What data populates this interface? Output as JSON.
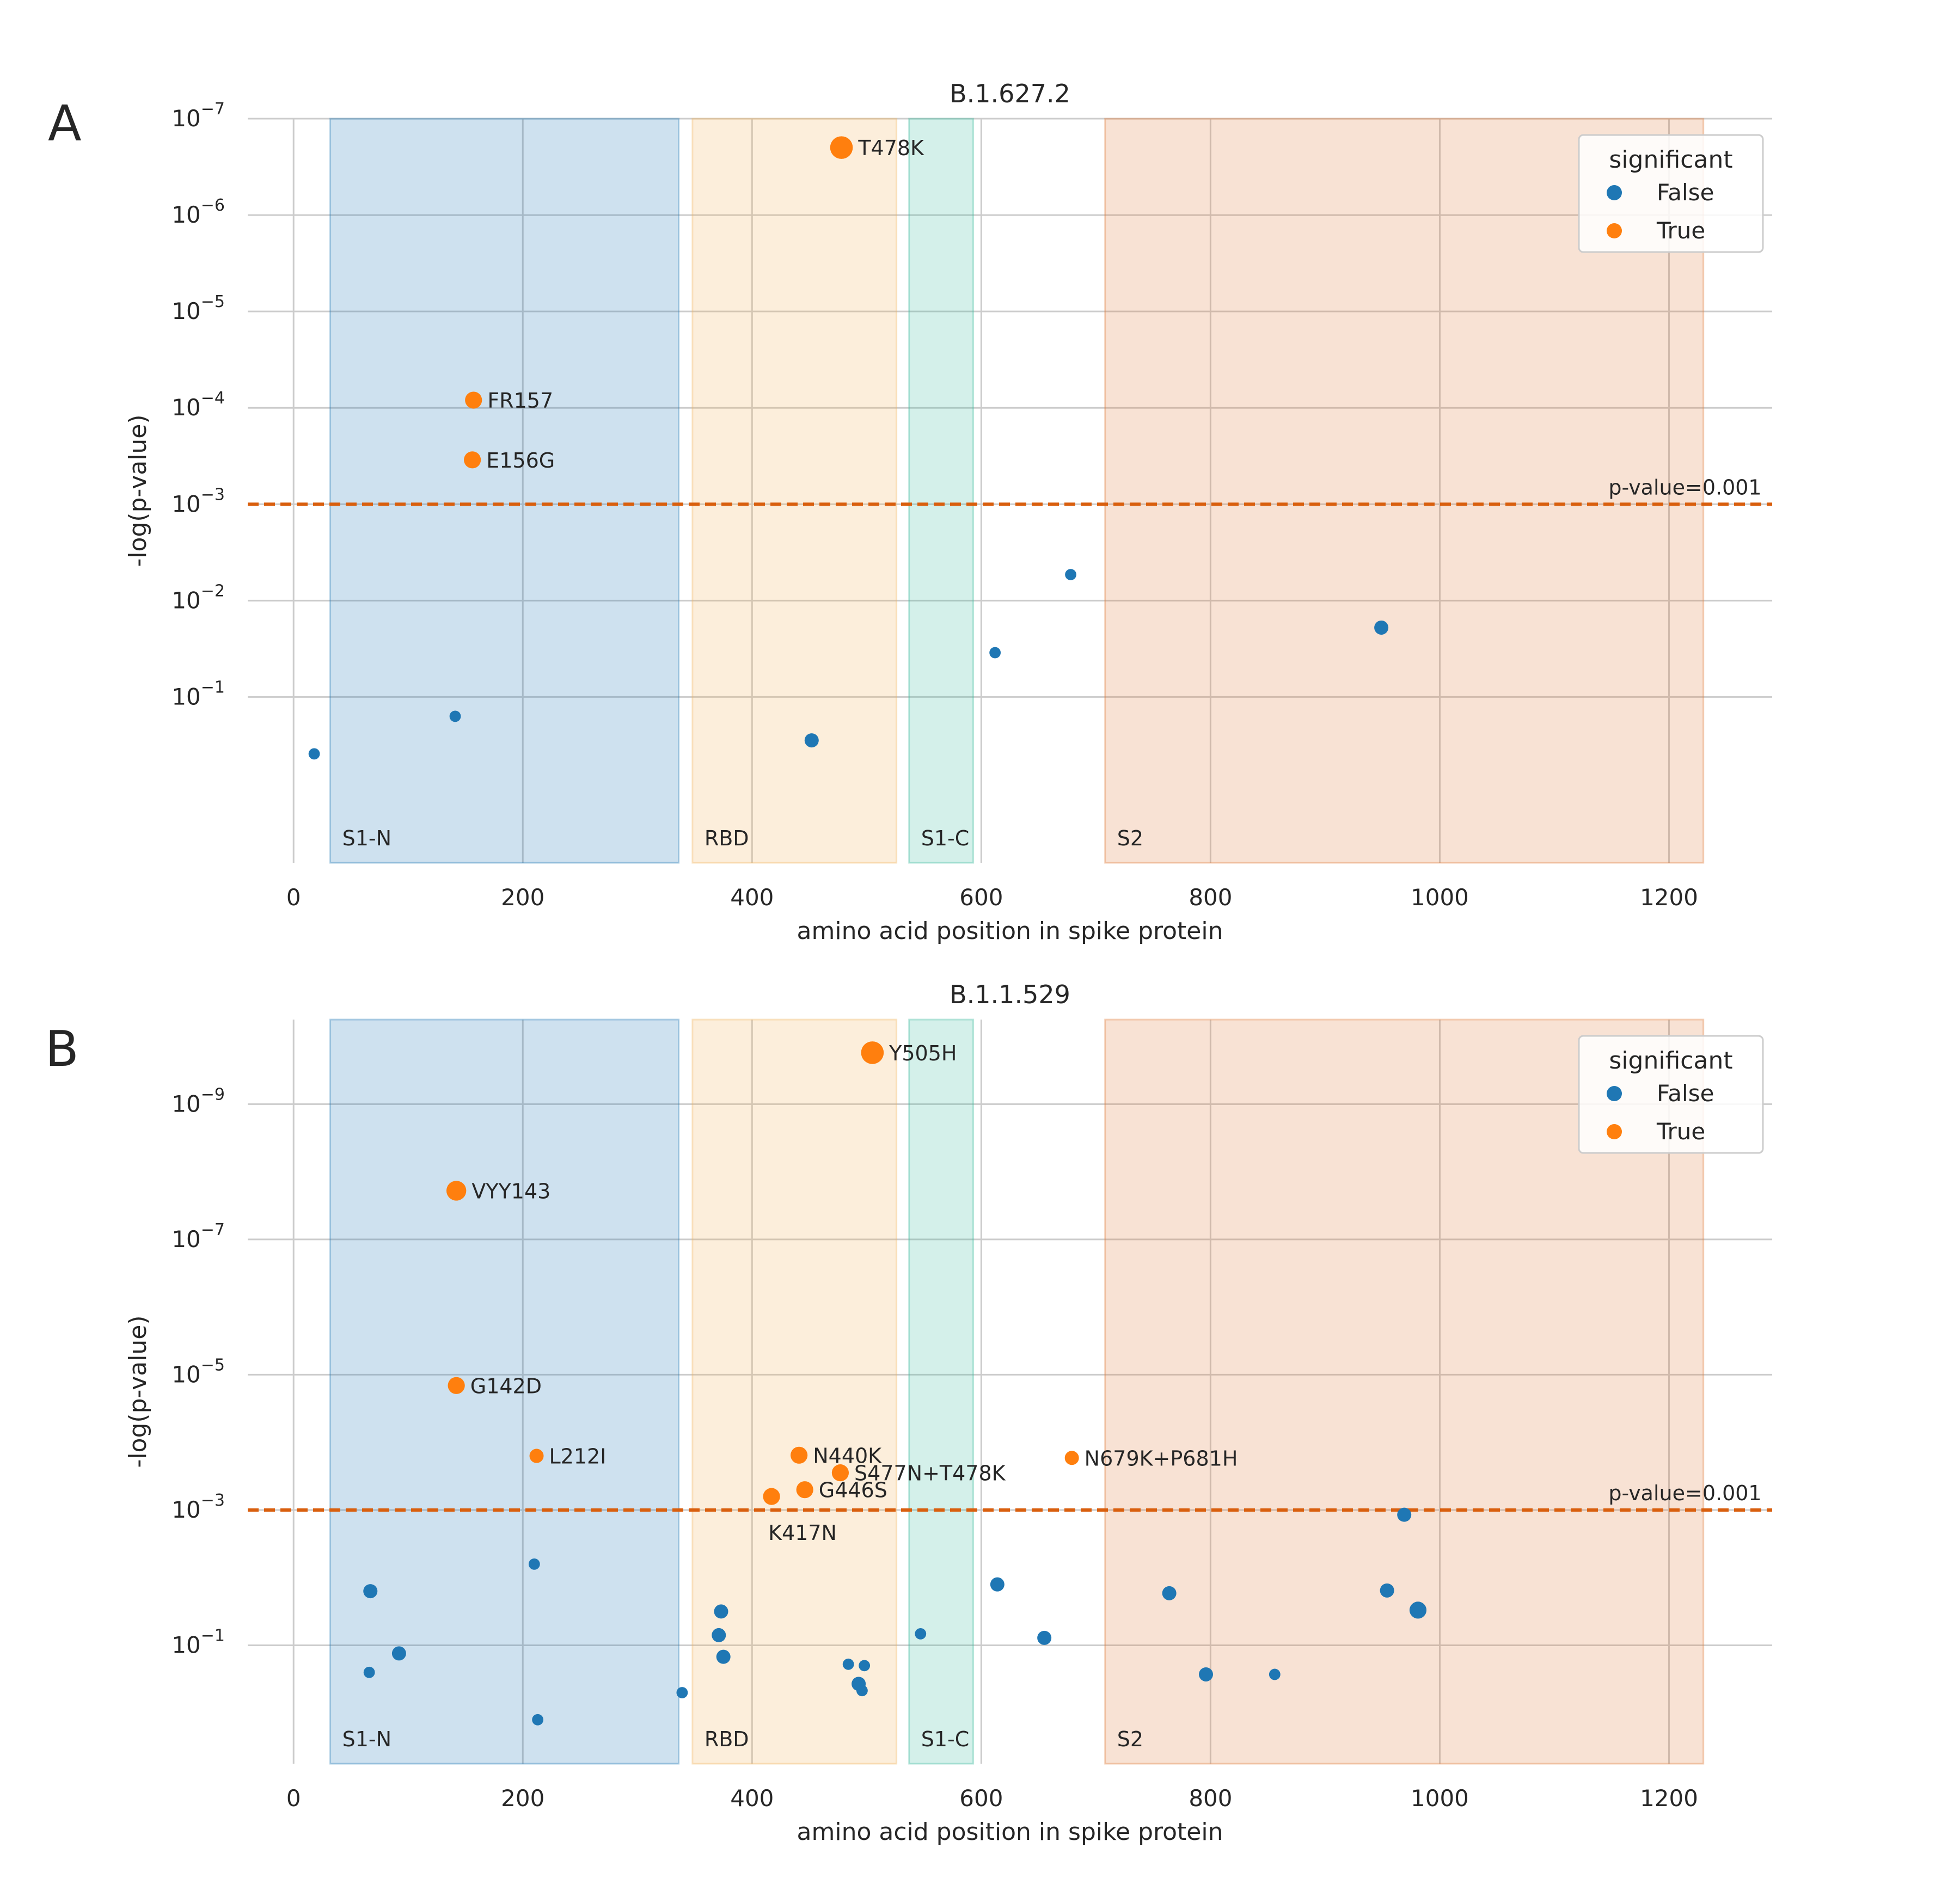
{
  "colors": {
    "false_point": "#1f77b4",
    "true_point": "#ff7f0e",
    "threshold_line": "#d95f0e",
    "region_s1n": "#1f77b4",
    "region_rbd": "#f2b25c",
    "region_s1c": "#3cba9f",
    "region_s2": "#e07b39",
    "grid": "#cccccc",
    "text": "#262626"
  },
  "chart_data": [
    {
      "panel_label": "A",
      "type": "scatter",
      "title": "B.1.627.2",
      "xlabel": "amino acid position in spike protein",
      "ylabel": "-log(p-value)",
      "xlim": [
        -40,
        1290
      ],
      "xticks": [
        0,
        200,
        400,
        600,
        800,
        1000,
        1200
      ],
      "ylim_log10": [
        -7,
        0.72
      ],
      "yticks": [
        {
          "exp": -7,
          "base": "10",
          "sup": "−7"
        },
        {
          "exp": -6,
          "base": "10",
          "sup": "−6"
        },
        {
          "exp": -5,
          "base": "10",
          "sup": "−5"
        },
        {
          "exp": -4,
          "base": "10",
          "sup": "−4"
        },
        {
          "exp": -3,
          "base": "10",
          "sup": "−3"
        },
        {
          "exp": -2,
          "base": "10",
          "sup": "−2"
        },
        {
          "exp": -1,
          "base": "10",
          "sup": "−1"
        }
      ],
      "threshold": {
        "log10": -3,
        "label": "p-value=0.001"
      },
      "regions": [
        {
          "name": "S1-N",
          "start": 32,
          "end": 336,
          "color_key": "region_s1n"
        },
        {
          "name": "RBD",
          "start": 348,
          "end": 526,
          "color_key": "region_rbd"
        },
        {
          "name": "S1-C",
          "start": 537,
          "end": 593,
          "color_key": "region_s1c"
        },
        {
          "name": "S2",
          "start": 708,
          "end": 1230,
          "color_key": "region_s2"
        }
      ],
      "legend": {
        "title": "significant",
        "position": "top-right",
        "entries": [
          "False",
          "True"
        ]
      },
      "points": [
        {
          "x": 18,
          "log10p": -0.41,
          "significant": false,
          "size": 4
        },
        {
          "x": 141,
          "log10p": -0.8,
          "significant": false,
          "size": 4
        },
        {
          "x": 452,
          "log10p": -0.55,
          "significant": false,
          "size": 5
        },
        {
          "x": 612,
          "log10p": -1.46,
          "significant": false,
          "size": 4
        },
        {
          "x": 678,
          "log10p": -2.27,
          "significant": false,
          "size": 4
        },
        {
          "x": 949,
          "log10p": -1.72,
          "significant": false,
          "size": 5
        },
        {
          "x": 157,
          "log10p": -4.08,
          "significant": true,
          "size": 6,
          "label": "FR157"
        },
        {
          "x": 156,
          "log10p": -3.46,
          "significant": true,
          "size": 6,
          "label": "E156G"
        },
        {
          "x": 478,
          "log10p": -6.7,
          "significant": true,
          "size": 8,
          "label": "T478K"
        }
      ]
    },
    {
      "panel_label": "B",
      "type": "scatter",
      "title": "B.1.1.529",
      "xlabel": "amino acid position in spike protein",
      "ylabel": "-log(p-value)",
      "xlim": [
        -40,
        1290
      ],
      "xticks": [
        0,
        200,
        400,
        600,
        800,
        1000,
        1200
      ],
      "ylim_log10": [
        -10.25,
        0.75
      ],
      "yticks": [
        {
          "exp": -9,
          "base": "10",
          "sup": "−9"
        },
        {
          "exp": -7,
          "base": "10",
          "sup": "−7"
        },
        {
          "exp": -5,
          "base": "10",
          "sup": "−5"
        },
        {
          "exp": -3,
          "base": "10",
          "sup": "−3"
        },
        {
          "exp": -1,
          "base": "10",
          "sup": "−1"
        }
      ],
      "threshold": {
        "log10": -3,
        "label": "p-value=0.001"
      },
      "regions": [
        {
          "name": "S1-N",
          "start": 32,
          "end": 336,
          "color_key": "region_s1n"
        },
        {
          "name": "RBD",
          "start": 348,
          "end": 526,
          "color_key": "region_rbd"
        },
        {
          "name": "S1-C",
          "start": 537,
          "end": 593,
          "color_key": "region_s1c"
        },
        {
          "name": "S2",
          "start": 708,
          "end": 1230,
          "color_key": "region_s2"
        }
      ],
      "legend": {
        "title": "significant",
        "position": "top-right",
        "entries": [
          "False",
          "True"
        ]
      },
      "points": [
        {
          "x": 67,
          "log10p": -1.8,
          "significant": false,
          "size": 5
        },
        {
          "x": 92,
          "log10p": -0.88,
          "significant": false,
          "size": 5
        },
        {
          "x": 66,
          "log10p": -0.6,
          "significant": false,
          "size": 4
        },
        {
          "x": 210,
          "log10p": -2.2,
          "significant": false,
          "size": 4
        },
        {
          "x": 213,
          "log10p": 0.1,
          "significant": false,
          "size": 4
        },
        {
          "x": 339,
          "log10p": -0.3,
          "significant": false,
          "size": 4
        },
        {
          "x": 373,
          "log10p": -1.5,
          "significant": false,
          "size": 5
        },
        {
          "x": 371,
          "log10p": -1.15,
          "significant": false,
          "size": 5
        },
        {
          "x": 375,
          "log10p": -0.83,
          "significant": false,
          "size": 5
        },
        {
          "x": 484,
          "log10p": -0.72,
          "significant": false,
          "size": 4
        },
        {
          "x": 493,
          "log10p": -0.43,
          "significant": false,
          "size": 5
        },
        {
          "x": 496,
          "log10p": -0.33,
          "significant": false,
          "size": 4
        },
        {
          "x": 498,
          "log10p": -0.7,
          "significant": false,
          "size": 4
        },
        {
          "x": 547,
          "log10p": -1.17,
          "significant": false,
          "size": 4
        },
        {
          "x": 614,
          "log10p": -1.9,
          "significant": false,
          "size": 5
        },
        {
          "x": 655,
          "log10p": -1.11,
          "significant": false,
          "size": 5
        },
        {
          "x": 764,
          "log10p": -1.77,
          "significant": false,
          "size": 5
        },
        {
          "x": 796,
          "log10p": -0.57,
          "significant": false,
          "size": 5
        },
        {
          "x": 856,
          "log10p": -0.57,
          "significant": false,
          "size": 4
        },
        {
          "x": 954,
          "log10p": -1.81,
          "significant": false,
          "size": 5
        },
        {
          "x": 969,
          "log10p": -2.93,
          "significant": false,
          "size": 5
        },
        {
          "x": 981,
          "log10p": -1.52,
          "significant": false,
          "size": 6
        },
        {
          "x": 142,
          "log10p": -7.72,
          "significant": true,
          "size": 7,
          "label": "VYY143"
        },
        {
          "x": 142,
          "log10p": -4.84,
          "significant": true,
          "size": 6,
          "label": "G142D"
        },
        {
          "x": 212,
          "log10p": -3.8,
          "significant": true,
          "size": 5,
          "label": "L212I"
        },
        {
          "x": 441,
          "log10p": -3.81,
          "significant": true,
          "size": 6,
          "label": "N440K"
        },
        {
          "x": 477,
          "log10p": -3.55,
          "significant": true,
          "size": 6,
          "label": "S477N+T478K"
        },
        {
          "x": 446,
          "log10p": -3.3,
          "significant": true,
          "size": 6,
          "label": "G446S"
        },
        {
          "x": 417,
          "log10p": -3.2,
          "significant": true,
          "size": 6,
          "label": "K417N",
          "label_pos": "below"
        },
        {
          "x": 679,
          "log10p": -3.77,
          "significant": true,
          "size": 5,
          "label": "N679K+P681H"
        },
        {
          "x": 505,
          "log10p": -9.76,
          "significant": true,
          "size": 8,
          "label": "Y505H"
        }
      ]
    }
  ]
}
